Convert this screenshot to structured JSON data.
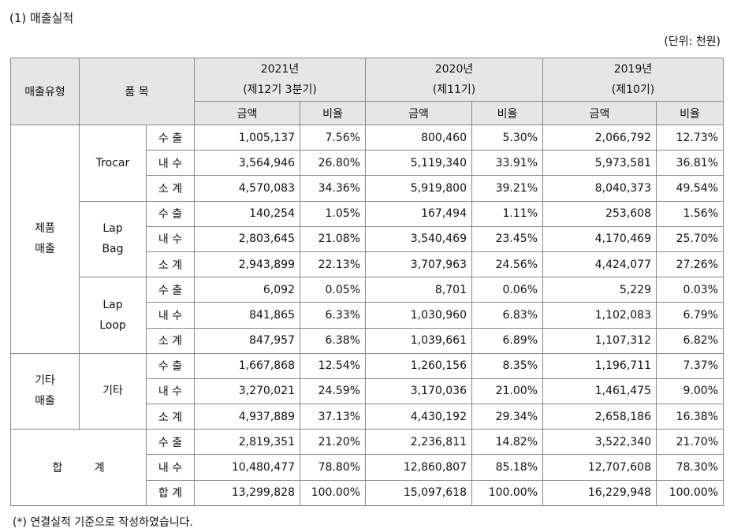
{
  "header": {
    "title": "(1) 매출실적",
    "unit": "(단위: 천원)"
  },
  "table": {
    "columns": {
      "type": "매출유형",
      "item": "품 목",
      "amount": "금액",
      "ratio": "비율"
    },
    "years": [
      {
        "year": "2021년",
        "period": "(제12기 3분기)"
      },
      {
        "year": "2020년",
        "period": "(제11기)"
      },
      {
        "year": "2019년",
        "period": "(제10기)"
      }
    ],
    "groups": [
      {
        "type": [
          "제품",
          "매출"
        ],
        "items": [
          {
            "name": [
              "Trocar"
            ],
            "rows": [
              {
                "label": "수 출",
                "cells": [
                  "1,005,137",
                  "7.56%",
                  "800,460",
                  "5.30%",
                  "2,066,792",
                  "12.73%"
                ]
              },
              {
                "label": "내 수",
                "cells": [
                  "3,564,946",
                  "26.80%",
                  "5,119,340",
                  "33.91%",
                  "5,973,581",
                  "36.81%"
                ]
              },
              {
                "label": "소 계",
                "cells": [
                  "4,570,083",
                  "34.36%",
                  "5,919,800",
                  "39.21%",
                  "8,040,373",
                  "49.54%"
                ]
              }
            ]
          },
          {
            "name": [
              "Lap",
              "Bag"
            ],
            "rows": [
              {
                "label": "수 출",
                "cells": [
                  "140,254",
                  "1.05%",
                  "167,494",
                  "1.11%",
                  "253,608",
                  "1.56%"
                ]
              },
              {
                "label": "내 수",
                "cells": [
                  "2,803,645",
                  "21.08%",
                  "3,540,469",
                  "23.45%",
                  "4,170,469",
                  "25.70%"
                ]
              },
              {
                "label": "소 계",
                "cells": [
                  "2,943,899",
                  "22.13%",
                  "3,707,963",
                  "24.56%",
                  "4,424,077",
                  "27.26%"
                ]
              }
            ]
          },
          {
            "name": [
              "Lap",
              "Loop"
            ],
            "rows": [
              {
                "label": "수 출",
                "cells": [
                  "6,092",
                  "0.05%",
                  "8,701",
                  "0.06%",
                  "5,229",
                  "0.03%"
                ]
              },
              {
                "label": "내 수",
                "cells": [
                  "841,865",
                  "6.33%",
                  "1,030,960",
                  "6.83%",
                  "1,102,083",
                  "6.79%"
                ]
              },
              {
                "label": "소 계",
                "cells": [
                  "847,957",
                  "6.38%",
                  "1,039,661",
                  "6.89%",
                  "1,107,312",
                  "6.82%"
                ]
              }
            ]
          }
        ]
      },
      {
        "type": [
          "기타",
          "매출"
        ],
        "items": [
          {
            "name": [
              "기타"
            ],
            "rows": [
              {
                "label": "수 출",
                "cells": [
                  "1,667,868",
                  "12.54%",
                  "1,260,156",
                  "8.35%",
                  "1,196,711",
                  "7.37%"
                ]
              },
              {
                "label": "내 수",
                "cells": [
                  "3,270,021",
                  "24.59%",
                  "3,170,036",
                  "21.00%",
                  "1,461,475",
                  "9.00%"
                ]
              },
              {
                "label": "소 계",
                "cells": [
                  "4,937,889",
                  "37.13%",
                  "4,430,192",
                  "29.34%",
                  "2,658,186",
                  "16.38%"
                ]
              }
            ]
          }
        ]
      }
    ],
    "total": {
      "label": "합 계",
      "rows": [
        {
          "label": "수 출",
          "cells": [
            "2,819,351",
            "21.20%",
            "2,236,811",
            "14.82%",
            "3,522,340",
            "21.70%"
          ]
        },
        {
          "label": "내 수",
          "cells": [
            "10,480,477",
            "78.80%",
            "12,860,807",
            "85.18%",
            "12,707,608",
            "78.30%"
          ]
        },
        {
          "label": "합 계",
          "cells": [
            "13,299,828",
            "100.00%",
            "15,097,618",
            "100.00%",
            "16,229,948",
            "100.00%"
          ]
        }
      ]
    }
  },
  "footnote": "(*) 연결실적 기준으로 작성하였습니다."
}
